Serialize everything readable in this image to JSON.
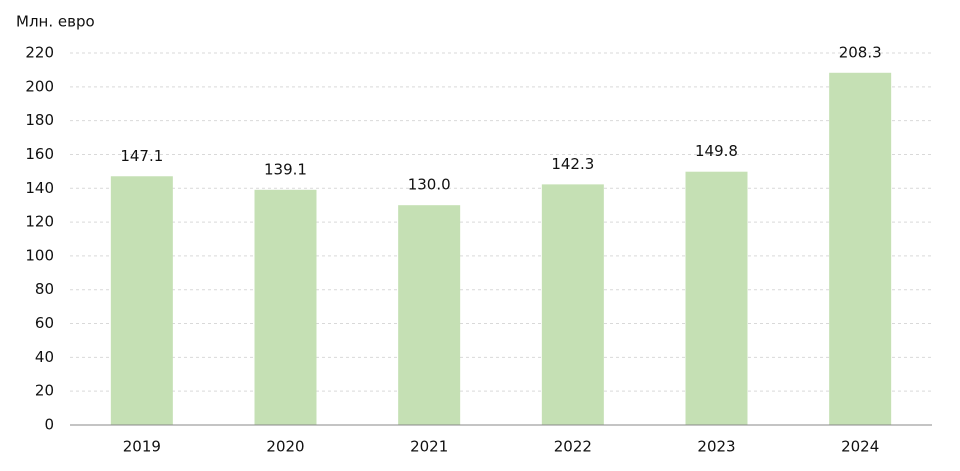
{
  "chart_data": {
    "type": "bar",
    "y_label": "Млн. евро",
    "categories": [
      "2019",
      "2020",
      "2021",
      "2022",
      "2023",
      "2024"
    ],
    "values": [
      147.1,
      139.1,
      130,
      142.3,
      149.8,
      208.3
    ],
    "value_labels": [
      "147.1",
      "139.1",
      "130.0",
      "142.3",
      "149.8",
      "208.3"
    ],
    "color": "#c5e0b4",
    "ylim": [
      0,
      220
    ],
    "yticks": [
      0,
      20,
      40,
      60,
      80,
      100,
      120,
      140,
      160,
      180,
      200,
      220
    ],
    "grid": true
  }
}
